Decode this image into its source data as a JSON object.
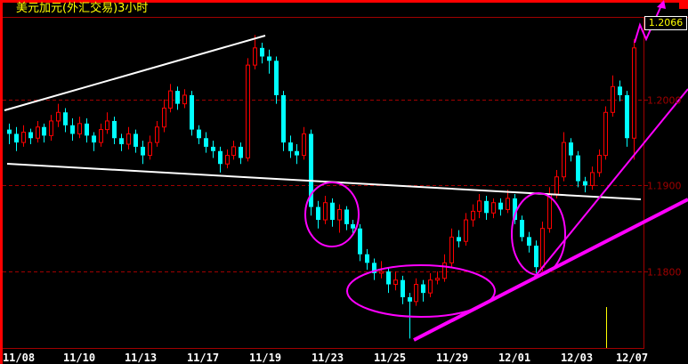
{
  "title": "美元加元(外汇交易)3小时",
  "last_price": "1.2066",
  "colors": {
    "up": "#ff0000",
    "down": "#00ffff",
    "doji": "#ffffff",
    "grid": "#a00000",
    "frame": "#ff0000",
    "annotation_magenta": "#ff00ff",
    "trendline_white": "#ffffff",
    "volume": "#ffff00",
    "title": "#ffff00"
  },
  "chart_data": {
    "type": "candlestick",
    "title": "美元加元(外汇交易)3小时",
    "ylim": [
      1.1711,
      1.2095
    ],
    "yticks": [
      "1.2000",
      "1.1900",
      "1.1800"
    ],
    "xticks": [
      "11/08",
      "11/10",
      "11/13",
      "11/17",
      "11/19",
      "11/23",
      "11/25",
      "11/29",
      "12/01",
      "12/03",
      "12/07"
    ],
    "grid": "horizontal dashed",
    "candles_ohlc": [
      [
        1.1965,
        1.1972,
        1.1948,
        1.196
      ],
      [
        1.196,
        1.1968,
        1.194,
        1.195
      ],
      [
        1.195,
        1.197,
        1.1945,
        1.1962
      ],
      [
        1.1962,
        1.1966,
        1.1948,
        1.1955
      ],
      [
        1.1955,
        1.1975,
        1.195,
        1.1968
      ],
      [
        1.1968,
        1.1972,
        1.195,
        1.1958
      ],
      [
        1.1958,
        1.1982,
        1.1952,
        1.1975
      ],
      [
        1.1975,
        1.1995,
        1.1968,
        1.1985
      ],
      [
        1.1985,
        1.199,
        1.1962,
        1.197
      ],
      [
        1.197,
        1.1978,
        1.1952,
        1.196
      ],
      [
        1.196,
        1.198,
        1.1955,
        1.1972
      ],
      [
        1.1972,
        1.1978,
        1.195,
        1.1958
      ],
      [
        1.1958,
        1.1962,
        1.194,
        1.195
      ],
      [
        1.195,
        1.1972,
        1.1945,
        1.1965
      ],
      [
        1.1965,
        1.1985,
        1.196,
        1.1975
      ],
      [
        1.1975,
        1.198,
        1.1948,
        1.1955
      ],
      [
        1.1955,
        1.196,
        1.194,
        1.1948
      ],
      [
        1.1948,
        1.1968,
        1.1942,
        1.196
      ],
      [
        1.196,
        1.1965,
        1.1938,
        1.1945
      ],
      [
        1.1945,
        1.1952,
        1.1925,
        1.1935
      ],
      [
        1.1935,
        1.1958,
        1.193,
        1.195
      ],
      [
        1.195,
        1.1975,
        1.1945,
        1.1968
      ],
      [
        1.1968,
        1.2,
        1.1962,
        1.199
      ],
      [
        1.199,
        1.2018,
        1.1985,
        1.201
      ],
      [
        1.201,
        1.2015,
        1.1988,
        1.1995
      ],
      [
        1.1995,
        1.2012,
        1.199,
        1.2005
      ],
      [
        1.2005,
        1.201,
        1.1958,
        1.1965
      ],
      [
        1.1965,
        1.197,
        1.1948,
        1.1955
      ],
      [
        1.1955,
        1.1962,
        1.1938,
        1.1945
      ],
      [
        1.1945,
        1.1952,
        1.1932,
        1.194
      ],
      [
        1.194,
        1.1945,
        1.1915,
        1.1925
      ],
      [
        1.1925,
        1.1942,
        1.192,
        1.1935
      ],
      [
        1.1935,
        1.1952,
        1.193,
        1.1945
      ],
      [
        1.1945,
        1.195,
        1.1925,
        1.1932
      ],
      [
        1.1932,
        1.2048,
        1.1928,
        1.204
      ],
      [
        1.204,
        1.2075,
        1.2035,
        1.206
      ],
      [
        1.206,
        1.2066,
        1.2042,
        1.205
      ],
      [
        1.205,
        1.2058,
        1.203,
        1.2045
      ],
      [
        1.2045,
        1.205,
        1.1995,
        1.2005
      ],
      [
        1.2005,
        1.201,
        1.194,
        1.195
      ],
      [
        1.195,
        1.1958,
        1.1932,
        1.194
      ],
      [
        1.194,
        1.1948,
        1.1925,
        1.1935
      ],
      [
        1.1935,
        1.1968,
        1.193,
        1.196
      ],
      [
        1.196,
        1.1965,
        1.1865,
        1.1875
      ],
      [
        1.1875,
        1.1882,
        1.185,
        1.186
      ],
      [
        1.186,
        1.1888,
        1.1855,
        1.188
      ],
      [
        1.188,
        1.1885,
        1.1852,
        1.186
      ],
      [
        1.186,
        1.1878,
        1.1845,
        1.1872
      ],
      [
        1.1872,
        1.1876,
        1.1848,
        1.1855
      ],
      [
        1.1855,
        1.186,
        1.1842,
        1.185
      ],
      [
        1.185,
        1.1855,
        1.1812,
        1.182
      ],
      [
        1.182,
        1.1826,
        1.1802,
        1.181
      ],
      [
        1.181,
        1.1815,
        1.179,
        1.1798
      ],
      [
        1.1798,
        1.1812,
        1.1792,
        1.18
      ],
      [
        1.18,
        1.1805,
        1.1775,
        1.1785
      ],
      [
        1.1785,
        1.18,
        1.1778,
        1.179
      ],
      [
        1.179,
        1.1795,
        1.1762,
        1.177
      ],
      [
        1.177,
        1.1775,
        1.1722,
        1.1765
      ],
      [
        1.1765,
        1.1792,
        1.176,
        1.1785
      ],
      [
        1.1785,
        1.179,
        1.1765,
        1.1775
      ],
      [
        1.1775,
        1.1798,
        1.177,
        1.179
      ],
      [
        1.179,
        1.18,
        1.1785,
        1.1792
      ],
      [
        1.1792,
        1.182,
        1.1788,
        1.181
      ],
      [
        1.181,
        1.185,
        1.1805,
        1.184
      ],
      [
        1.184,
        1.1848,
        1.1828,
        1.1835
      ],
      [
        1.1835,
        1.1868,
        1.183,
        1.186
      ],
      [
        1.186,
        1.1878,
        1.1852,
        1.187
      ],
      [
        1.187,
        1.189,
        1.1862,
        1.1882
      ],
      [
        1.1882,
        1.1888,
        1.186,
        1.1868
      ],
      [
        1.1868,
        1.1885,
        1.1862,
        1.188
      ],
      [
        1.188,
        1.1885,
        1.1865,
        1.1872
      ],
      [
        1.1872,
        1.1895,
        1.1868,
        1.1885
      ],
      [
        1.1885,
        1.189,
        1.1855,
        1.186
      ],
      [
        1.186,
        1.1865,
        1.1835,
        1.184
      ],
      [
        1.184,
        1.1846,
        1.1822,
        1.183
      ],
      [
        1.183,
        1.1836,
        1.1798,
        1.1805
      ],
      [
        1.1805,
        1.1858,
        1.18,
        1.185
      ],
      [
        1.185,
        1.1898,
        1.1845,
        1.189
      ],
      [
        1.189,
        1.1918,
        1.1885,
        1.191
      ],
      [
        1.191,
        1.1962,
        1.1905,
        1.195
      ],
      [
        1.195,
        1.1955,
        1.1928,
        1.1935
      ],
      [
        1.1935,
        1.194,
        1.1898,
        1.1905
      ],
      [
        1.1905,
        1.191,
        1.1892,
        1.19
      ],
      [
        1.19,
        1.1922,
        1.1895,
        1.1915
      ],
      [
        1.1915,
        1.1942,
        1.191,
        1.1935
      ],
      [
        1.1935,
        1.1992,
        1.193,
        1.1985
      ],
      [
        1.1985,
        1.2028,
        1.198,
        1.2015
      ],
      [
        1.2015,
        1.2022,
        1.1998,
        1.2005
      ],
      [
        1.2005,
        1.201,
        1.1945,
        1.1955
      ],
      [
        1.1955,
        1.207,
        1.193,
        1.206
      ]
    ]
  }
}
